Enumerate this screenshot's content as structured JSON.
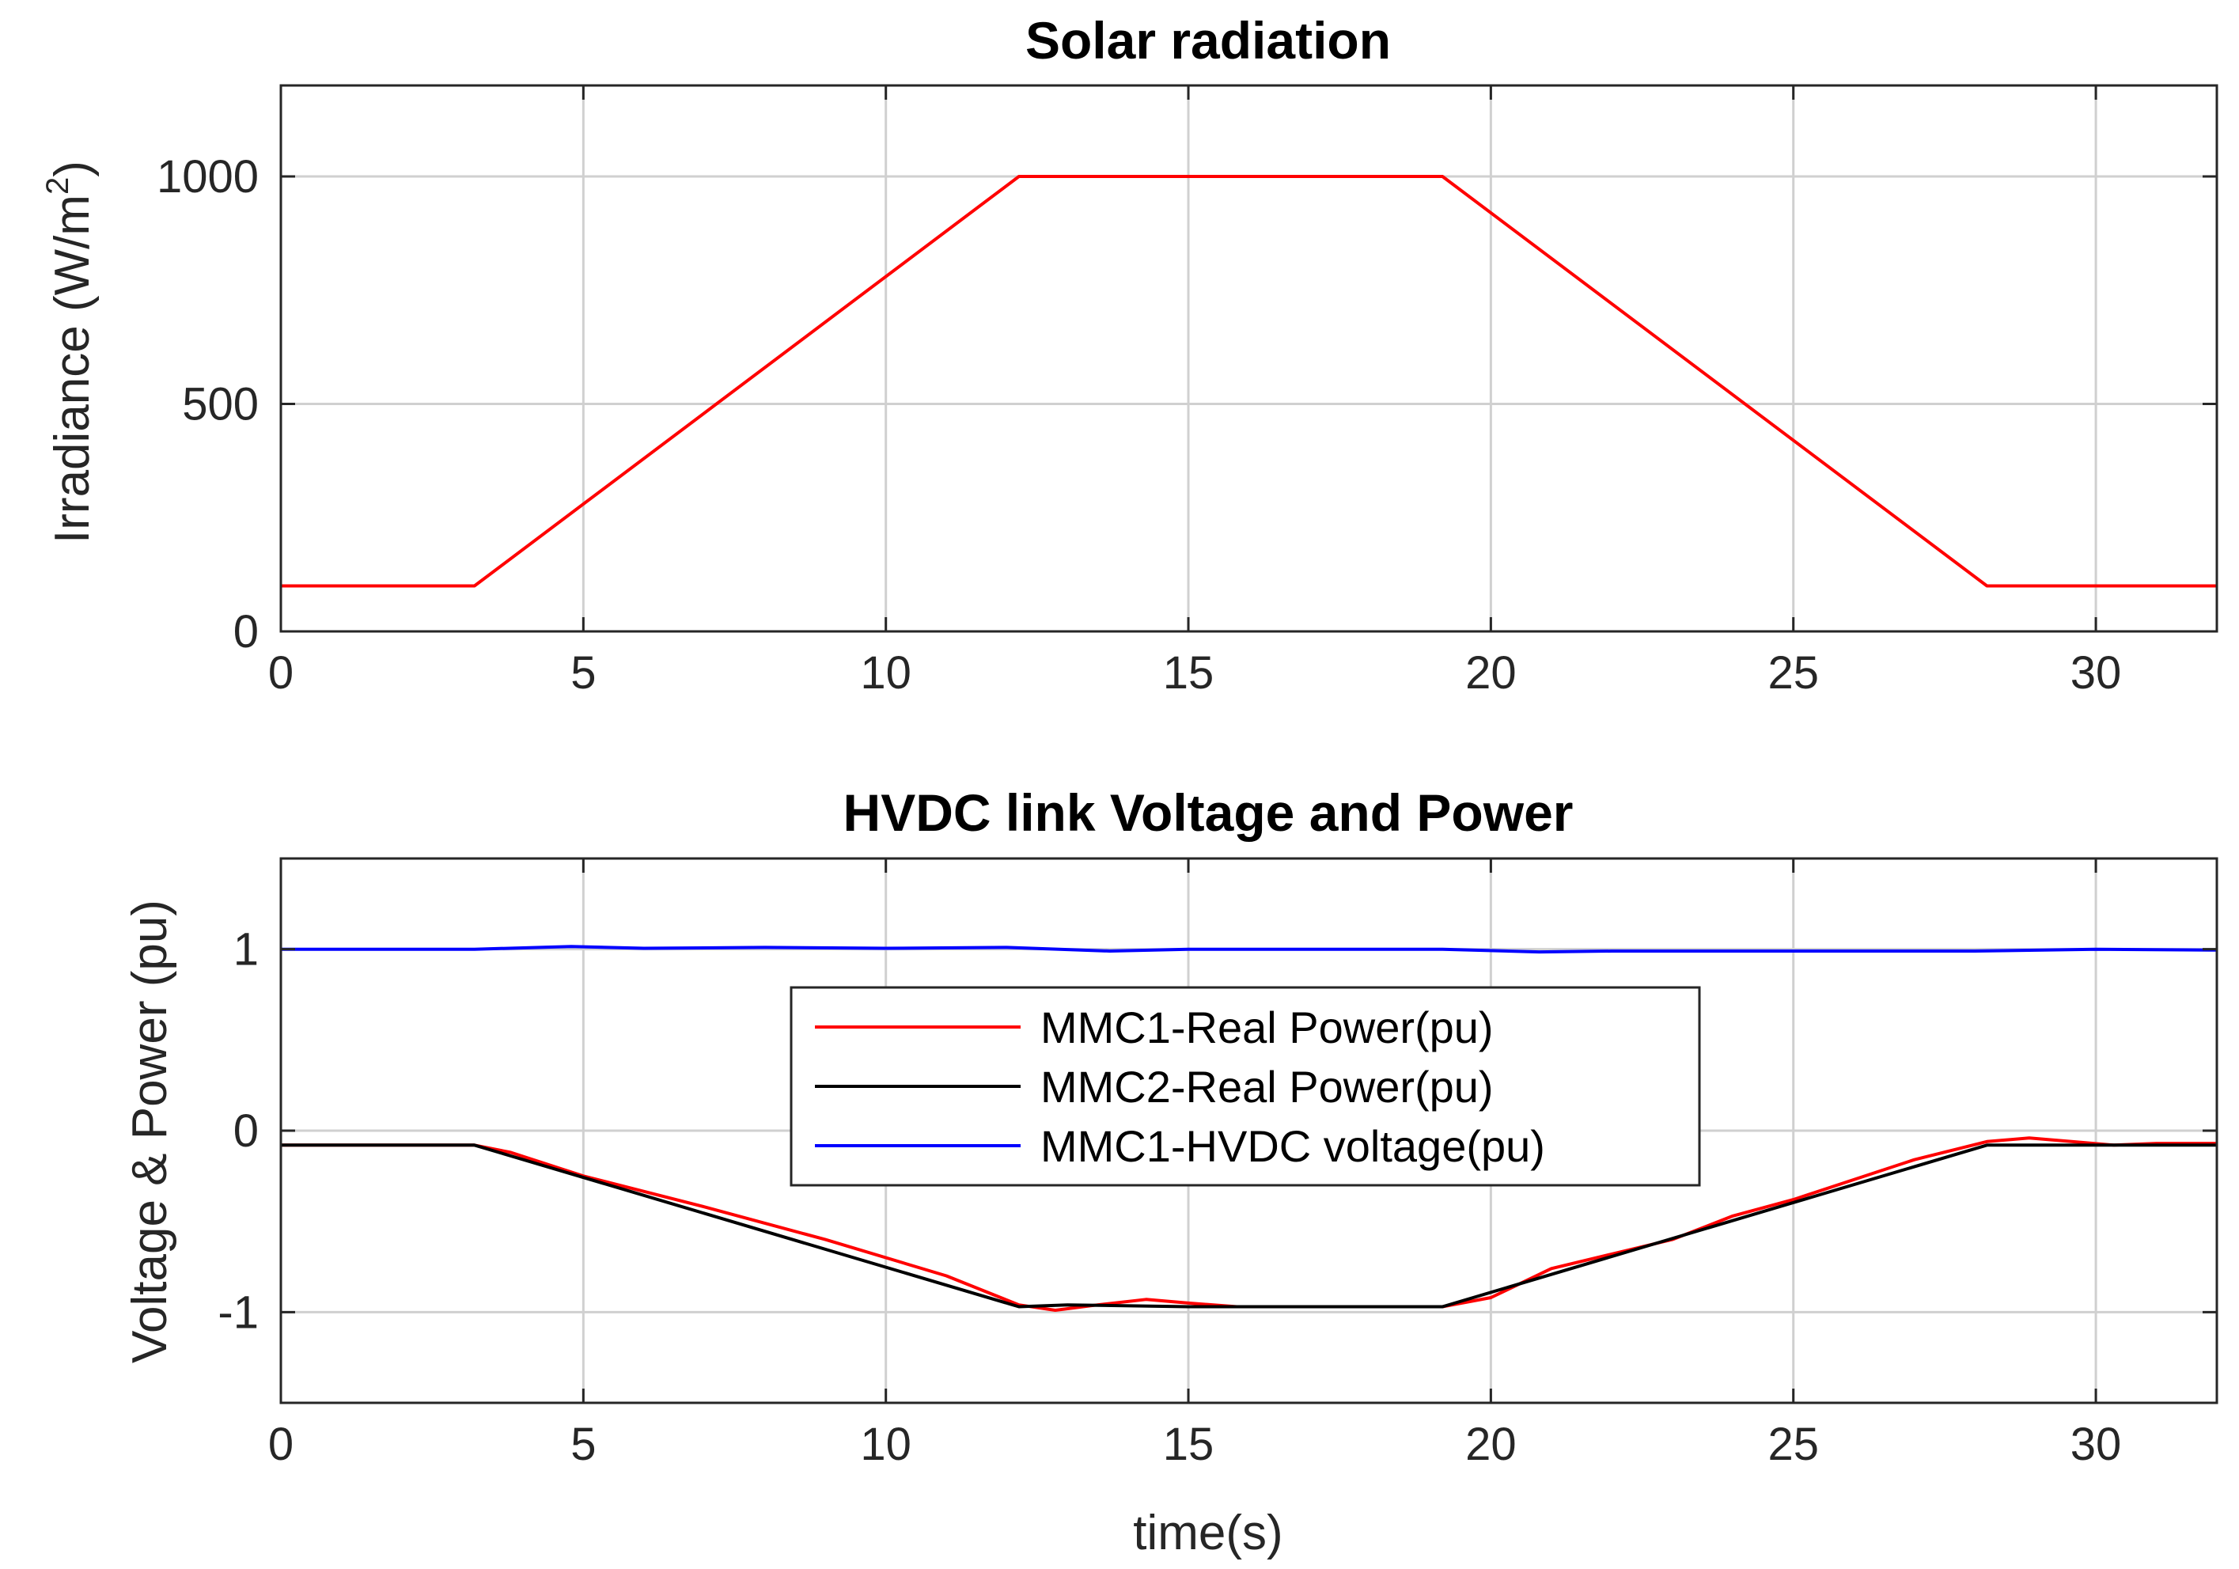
{
  "colors": {
    "red": "#ff0000",
    "black": "#000000",
    "blue": "#0000ff"
  },
  "chart_data": [
    {
      "type": "line",
      "title": "Solar radiation",
      "xlabel": "",
      "ylabel": "Irradiance (W/m",
      "ylabel_sup": "2",
      "ylabel_close": ")",
      "xlim": [
        0,
        32
      ],
      "ylim": [
        0,
        1200
      ],
      "xticks": [
        0,
        5,
        10,
        15,
        20,
        25,
        30
      ],
      "yticks": [
        0,
        500,
        1000
      ],
      "grid": true,
      "series": [
        {
          "name": "Irradiance",
          "color": "#ff0000",
          "x": [
            0,
            3.2,
            12.2,
            19.2,
            28.2,
            32
          ],
          "y": [
            100,
            100,
            1000,
            1000,
            100,
            100
          ]
        }
      ]
    },
    {
      "type": "line",
      "title": "HVDC link Voltage and Power",
      "xlabel": "time(s)",
      "ylabel": "Voltage & Power (pu)",
      "xlim": [
        0,
        32
      ],
      "ylim": [
        -1.5,
        1.5
      ],
      "xticks": [
        0,
        5,
        10,
        15,
        20,
        25,
        30
      ],
      "yticks": [
        -1,
        0,
        1
      ],
      "grid": true,
      "legend_position": "center",
      "series": [
        {
          "name": "MMC1-Real Power(pu)",
          "color": "#ff0000",
          "x": [
            0,
            3.2,
            3.8,
            5,
            7,
            9,
            11,
            12.2,
            12.8,
            13.5,
            14.3,
            15,
            15.8,
            19.2,
            20,
            21,
            22,
            23,
            24,
            25,
            26,
            27,
            28.2,
            28.9,
            29.6,
            30.3,
            31,
            32
          ],
          "y": [
            -0.08,
            -0.08,
            -0.12,
            -0.25,
            -0.42,
            -0.6,
            -0.8,
            -0.96,
            -0.99,
            -0.96,
            -0.93,
            -0.95,
            -0.97,
            -0.97,
            -0.92,
            -0.76,
            -0.68,
            -0.6,
            -0.47,
            -0.38,
            -0.27,
            -0.16,
            -0.06,
            -0.04,
            -0.06,
            -0.08,
            -0.07,
            -0.07
          ]
        },
        {
          "name": "MMC2-Real Power(pu)",
          "color": "#000000",
          "x": [
            0,
            3.2,
            12.2,
            13,
            15,
            16,
            19.2,
            28.2,
            32
          ],
          "y": [
            -0.08,
            -0.08,
            -0.97,
            -0.96,
            -0.97,
            -0.97,
            -0.97,
            -0.08,
            -0.08
          ]
        },
        {
          "name": "MMC1-HVDC voltage(pu)",
          "color": "#0000ff",
          "x": [
            0,
            3.2,
            4.8,
            6,
            8,
            10,
            12,
            13.7,
            15,
            17,
            19.2,
            20.8,
            22,
            24,
            26,
            28,
            30,
            32
          ],
          "y": [
            1.0,
            1.0,
            1.015,
            1.005,
            1.01,
            1.005,
            1.01,
            0.99,
            1.0,
            1.0,
            1.0,
            0.985,
            0.99,
            0.99,
            0.99,
            0.99,
            1.0,
            0.995
          ]
        }
      ]
    }
  ]
}
